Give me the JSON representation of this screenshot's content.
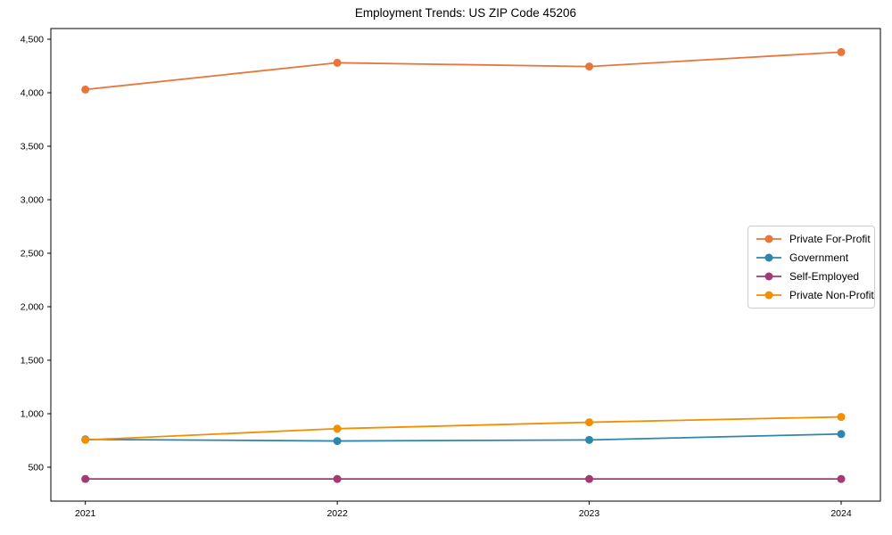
{
  "chart_data": {
    "type": "line",
    "title": "Employment Trends: US ZIP Code 45206",
    "xlabel": "",
    "ylabel": "",
    "x": [
      2021,
      2022,
      2023,
      2024
    ],
    "x_tick_labels": [
      "2021",
      "2022",
      "2023",
      "2024"
    ],
    "y_tick_values": [
      500,
      1000,
      1500,
      2000,
      2500,
      3000,
      3500,
      4000,
      4500
    ],
    "y_tick_labels": [
      "500",
      "1,000",
      "1,500",
      "2,000",
      "2,500",
      "3,000",
      "3,500",
      "4,000",
      "4,500"
    ],
    "ylim": [
      183,
      4600
    ],
    "grid": false,
    "legend_position": "center-right",
    "series": [
      {
        "name": "Private For-Profit",
        "color": "#e8763b",
        "values": [
          4030,
          4280,
          4245,
          4380
        ]
      },
      {
        "name": "Government",
        "color": "#2e86ab",
        "values": [
          760,
          745,
          755,
          810
        ]
      },
      {
        "name": "Self-Employed",
        "color": "#a23b72",
        "values": [
          390,
          390,
          390,
          390
        ]
      },
      {
        "name": "Private Non-Profit",
        "color": "#f18f01",
        "values": [
          755,
          860,
          920,
          970
        ]
      }
    ]
  }
}
